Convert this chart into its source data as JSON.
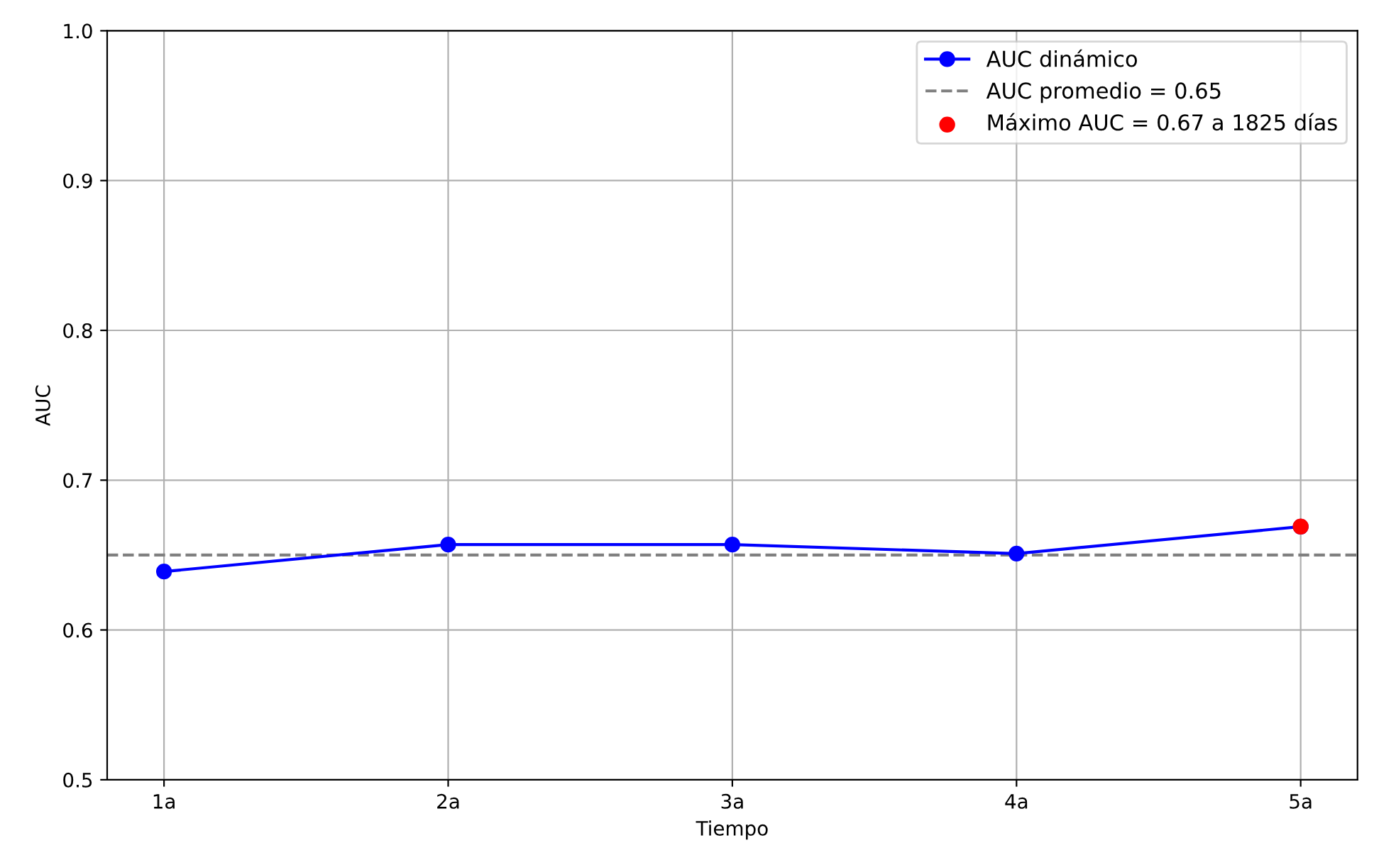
{
  "chart_data": {
    "type": "line",
    "xlabel": "Tiempo",
    "ylabel": "AUC",
    "categories": [
      "1a",
      "2a",
      "3a",
      "4a",
      "5a"
    ],
    "series": [
      {
        "name": "AUC dinámico",
        "color": "#0000ff",
        "values": [
          0.639,
          0.657,
          0.657,
          0.651,
          0.669
        ],
        "marker": "circle"
      },
      {
        "name": "Máximo AUC = 0.67 a 1825 días",
        "type": "scatter",
        "color": "#ff0000",
        "x": [
          "5a"
        ],
        "values": [
          0.669
        ]
      }
    ],
    "ref_lines": [
      {
        "axis": "y",
        "value": 0.65,
        "label": "AUC promedio = 0.65",
        "color": "#808080",
        "line_style": "dashed"
      }
    ],
    "ylim": [
      0.5,
      1.0
    ],
    "yticks": [
      0.5,
      0.6,
      0.7,
      0.8,
      0.9,
      {
        "value": 1,
        "label": "1.0"
      }
    ],
    "grid": true,
    "legend": "top right"
  }
}
